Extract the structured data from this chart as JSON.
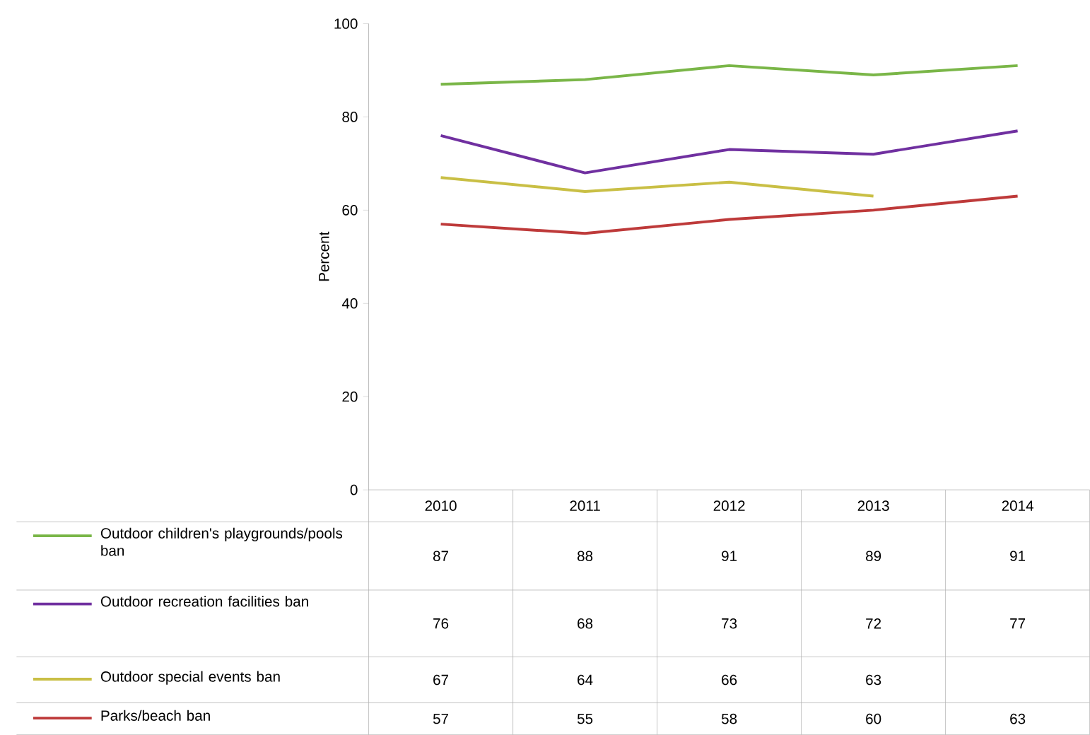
{
  "chart_data": {
    "type": "line",
    "ylabel": "Percent",
    "categories": [
      "2010",
      "2011",
      "2012",
      "2013",
      "2014"
    ],
    "series": [
      {
        "name": "Outdoor children's playgrounds/pools ban",
        "color": "#7ab648",
        "values": [
          87,
          88,
          91,
          89,
          91
        ]
      },
      {
        "name": "Outdoor recreation facilities ban",
        "color": "#7030a0",
        "values": [
          76,
          68,
          73,
          72,
          77
        ]
      },
      {
        "name": "Outdoor special events ban",
        "color": "#c9bf45",
        "values": [
          67,
          64,
          66,
          63,
          null
        ]
      },
      {
        "name": "Parks/beach ban",
        "color": "#be3a3a",
        "values": [
          57,
          55,
          58,
          60,
          63
        ]
      }
    ],
    "ylim": [
      0,
      100
    ],
    "yticks": [
      0,
      20,
      40,
      60,
      80,
      100
    ],
    "marker": "none",
    "line_style": "solid",
    "legend": "bottom",
    "data_labels": true
  }
}
